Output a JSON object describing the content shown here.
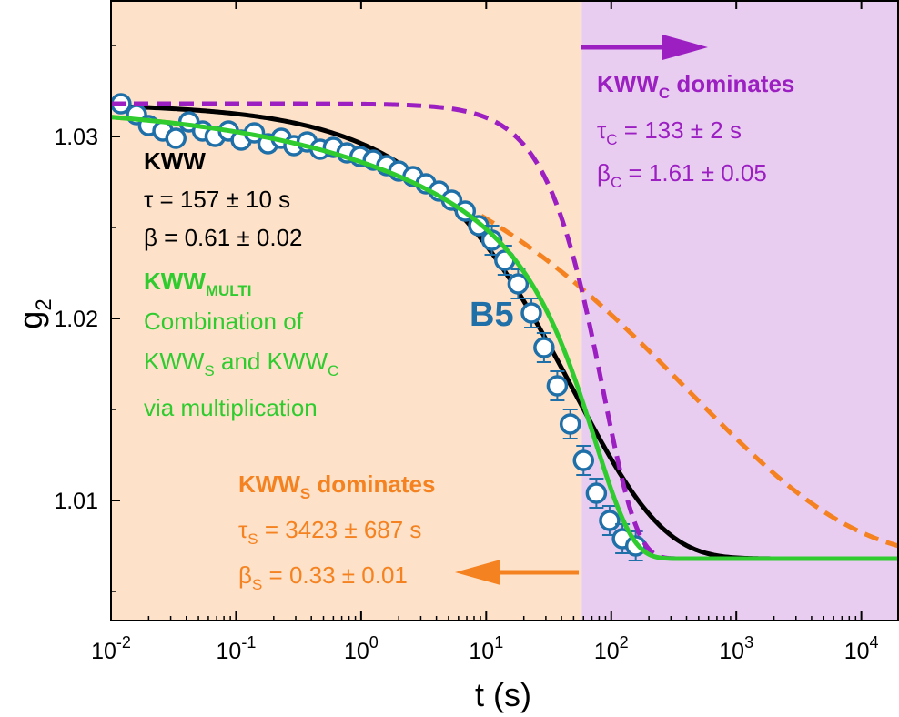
{
  "chart_data": {
    "type": "scatter",
    "xlabel": "t (s)",
    "ylabel": {
      "main": "g",
      "sub": "2"
    },
    "xscale": "log",
    "xlim": [
      0.01,
      20000
    ],
    "ylim": [
      1.0034,
      1.0375
    ],
    "x_ticks": [
      {
        "base": "10",
        "exp": "-2",
        "v": 0.01
      },
      {
        "base": "10",
        "exp": "-1",
        "v": 0.1
      },
      {
        "base": "10",
        "exp": "0",
        "v": 1
      },
      {
        "base": "10",
        "exp": "1",
        "v": 10
      },
      {
        "base": "10",
        "exp": "2",
        "v": 100
      },
      {
        "base": "10",
        "exp": "3",
        "v": 1000
      },
      {
        "base": "10",
        "exp": "4",
        "v": 10000
      }
    ],
    "y_ticks": [
      {
        "label": "1.01",
        "v": 1.01
      },
      {
        "label": "1.02",
        "v": 1.02
      },
      {
        "label": "1.03",
        "v": 1.03
      }
    ],
    "regions": [
      {
        "x0": 0.01,
        "x1": 58,
        "color": "#fde1c8"
      },
      {
        "x0": 58,
        "x1": 20000,
        "color": "#e9cdf1"
      }
    ],
    "data_series": {
      "name": "B5",
      "color": "#1f6fa8",
      "points": [
        [
          0.012,
          1.0318
        ],
        [
          0.016,
          1.0312
        ],
        [
          0.02,
          1.0306
        ],
        [
          0.026,
          1.0303
        ],
        [
          0.033,
          1.0299
        ],
        [
          0.042,
          1.0308
        ],
        [
          0.054,
          1.0303
        ],
        [
          0.068,
          1.03
        ],
        [
          0.087,
          1.0303
        ],
        [
          0.11,
          1.0298
        ],
        [
          0.14,
          1.0302
        ],
        [
          0.18,
          1.0296
        ],
        [
          0.23,
          1.0299
        ],
        [
          0.29,
          1.0295
        ],
        [
          0.37,
          1.0297
        ],
        [
          0.47,
          1.0293
        ],
        [
          0.6,
          1.0294
        ],
        [
          0.77,
          1.0291
        ],
        [
          0.98,
          1.0289
        ],
        [
          1.25,
          1.0287
        ],
        [
          1.6,
          1.0284
        ],
        [
          2.0,
          1.0281
        ],
        [
          2.6,
          1.0278
        ],
        [
          3.3,
          1.0274
        ],
        [
          4.2,
          1.027
        ],
        [
          5.3,
          1.0265
        ],
        [
          6.8,
          1.0259
        ],
        [
          8.7,
          1.0251
        ],
        [
          11.1,
          1.0243
        ],
        [
          14.1,
          1.0232
        ],
        [
          18,
          1.0219
        ],
        [
          23,
          1.0203
        ],
        [
          29,
          1.0184
        ],
        [
          37,
          1.0163
        ],
        [
          47,
          1.0142
        ],
        [
          60,
          1.0122
        ],
        [
          76,
          1.0104
        ],
        [
          97,
          1.0089
        ],
        [
          123,
          1.0079
        ],
        [
          157,
          1.0075
        ]
      ]
    },
    "curves": [
      {
        "name": "KWW",
        "color": "#000000",
        "style": "solid",
        "tau": 157,
        "beta": 0.61,
        "g_inf": 1.0068,
        "amp": 0.025
      },
      {
        "name": "KWW_S",
        "color": "#f58220",
        "style": "dashed",
        "tau": 3423,
        "beta": 0.33,
        "g_inf": 1.0068,
        "amp": 0.025
      },
      {
        "name": "KWW_C",
        "color": "#9b1fc1",
        "style": "dashed",
        "tau": 133,
        "beta": 1.61,
        "g_inf": 1.0068,
        "amp": 0.025
      },
      {
        "name": "KWW_MULTI",
        "color": "#2fcb2f",
        "style": "solid",
        "combination": "KWW_S*KWW_C",
        "g_inf": 1.0068,
        "amp": 0.025
      }
    ],
    "annotations": {
      "kww": {
        "title": "KWW",
        "tau": "τ = 157 ± 10 s",
        "beta": "β = 0.61 ± 0.02",
        "color": "#000000"
      },
      "multi": {
        "title": "KWW",
        "title_sub": "MULTI",
        "line1": "Combination of",
        "line2_a": "KWW",
        "line2_a_sub": "S",
        "line2_b": " and KWW",
        "line2_b_sub": "C",
        "line3": "via multiplication",
        "color": "#2fcb2f"
      },
      "b5": {
        "text": "B5",
        "color": "#1f6fa8"
      },
      "kwwc": {
        "title": "KWW",
        "title_sub": "C",
        "title_rest": " dominates",
        "tau_pre": "τ",
        "tau_sub": "C",
        "tau_val": " = 133 ± 2 s",
        "beta_pre": "β",
        "beta_sub": "C",
        "beta_val": " = 1.61 ± 0.05",
        "color": "#9b1fc1"
      },
      "kwws": {
        "title": "KWW",
        "title_sub": "S",
        "title_rest": " dominates",
        "tau_pre": "τ",
        "tau_sub": "S",
        "tau_val": " = 3423 ± 687 s",
        "beta_pre": "β",
        "beta_sub": "S",
        "beta_val": " = 0.33 ± 0.01",
        "color": "#f58220"
      }
    },
    "arrows": [
      {
        "name": "right-arrow",
        "color": "#9b1fc1",
        "direction": "right"
      },
      {
        "name": "left-arrow",
        "color": "#f58220",
        "direction": "left"
      }
    ]
  }
}
